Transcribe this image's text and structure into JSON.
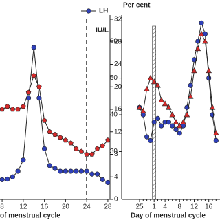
{
  "chart_data": [
    {
      "type": "line",
      "y2label": "IU/L",
      "xlabel": "of menstrual cycle",
      "x": [
        8,
        9,
        10,
        11,
        12,
        13,
        14,
        15,
        16,
        17,
        18,
        19,
        20,
        21,
        22,
        23,
        24,
        25,
        26,
        27,
        28
      ],
      "xlim": [
        7.6,
        28.4
      ],
      "xticks": [
        8,
        12,
        16,
        20,
        24,
        28
      ],
      "ylim": [
        0,
        32
      ],
      "yticks": [
        0,
        4,
        8,
        12,
        16,
        20,
        24,
        28,
        32
      ],
      "vline": 24,
      "legend": "top-right",
      "series": [
        {
          "name": "LH",
          "color": "#2e3fb8",
          "marker": "circle",
          "values": [
            3.5,
            3.6,
            4,
            5,
            7,
            18,
            27,
            18,
            9,
            6,
            5.5,
            5,
            5,
            5,
            5,
            5,
            5,
            4.5,
            4.5,
            3.5,
            3
          ]
        },
        {
          "color": "#d42a2a",
          "marker": "pentagon",
          "values": [
            16,
            16.5,
            16,
            16,
            16.5,
            19,
            22,
            20,
            14,
            12,
            11.5,
            11,
            10.5,
            10,
            9,
            8.5,
            8,
            8,
            9,
            9.5,
            10.5
          ]
        }
      ]
    },
    {
      "type": "line",
      "ylabel": "Per cent",
      "xlabel": "Day of menstrual cycle",
      "categories": [
        "25",
        null,
        null,
        null,
        "1",
        null,
        null,
        "4",
        null,
        null,
        null,
        "8",
        null,
        null,
        null,
        "12",
        null,
        null,
        null,
        "16",
        null,
        null
      ],
      "ylim": [
        17,
        66
      ],
      "yticks": [
        30,
        40,
        50,
        60
      ],
      "highlight": 4,
      "series": [
        {
          "color": "#2e3fb8",
          "marker": "circle",
          "values": [
            42,
            40,
            34,
            33,
            38,
            39,
            37,
            38,
            38,
            37,
            36,
            35,
            37,
            42,
            48,
            55,
            60,
            65,
            62,
            50,
            40,
            33
          ]
        },
        {
          "color": "#d42a2a",
          "marker": "triangle",
          "values": [
            42,
            41,
            47,
            50,
            49,
            48,
            44,
            43,
            42,
            40,
            38,
            37,
            38,
            40,
            45,
            52,
            58,
            62,
            60,
            52,
            42,
            35
          ]
        }
      ]
    }
  ]
}
